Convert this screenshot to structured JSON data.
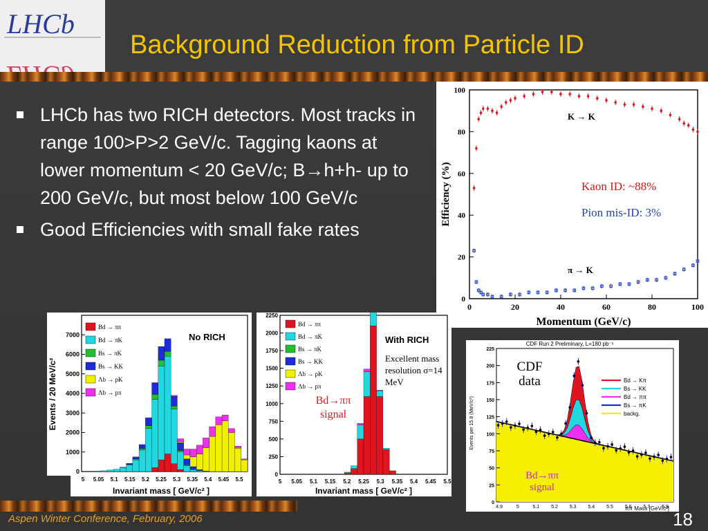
{
  "logo": {
    "text": "LHCb",
    "mirror_text": "LHCb"
  },
  "title": "Background Reduction from Particle ID",
  "bullets": [
    {
      "text": "LHCb has two RICH detectors. Most tracks in range 100>P>2 GeV/c. Tagging kaons at lower momentum < 20 GeV/c; B→h+h- up to 200 GeV/c, but most below 100 GeV/c"
    },
    {
      "text": "Good Efficiencies with small fake rates"
    }
  ],
  "footer": "Aspen Winter Conference, February, 2006",
  "page_number": "18",
  "colors": {
    "title": "#f5c400",
    "footer": "#e6a020",
    "kaon": "#e0141e",
    "pion": "#1e3cc8"
  },
  "chart_data": [
    {
      "type": "scatter",
      "xlabel": "Momentum  (GeV/c)",
      "ylabel": "Efficiency  (%)",
      "xlim": [
        0,
        100
      ],
      "ylim": [
        0,
        100
      ],
      "x_ticks": [
        "0",
        "20",
        "40",
        "60",
        "80",
        "100"
      ],
      "y_ticks": [
        "0",
        "20",
        "40",
        "60",
        "80",
        "100"
      ],
      "annotations": [
        "K → K",
        "π → K",
        "Kaon ID: ~88%",
        "Pion mis-ID: 3%"
      ],
      "series": [
        {
          "name": "K → K",
          "x": [
            2,
            3,
            4,
            5,
            6,
            8,
            10,
            12,
            14,
            16,
            18,
            20,
            24,
            28,
            32,
            36,
            40,
            44,
            48,
            52,
            56,
            60,
            64,
            68,
            72,
            76,
            80,
            84,
            88,
            92,
            94,
            96,
            98,
            100
          ],
          "values": [
            53,
            72,
            86,
            89,
            91,
            91,
            90,
            89,
            92,
            94,
            95,
            96,
            97,
            98,
            99,
            99,
            98,
            98,
            97,
            97,
            96,
            95,
            94,
            93,
            93,
            92,
            91,
            90,
            88,
            86,
            84,
            83,
            81,
            80
          ]
        },
        {
          "name": "π → K",
          "x": [
            2,
            3,
            4,
            5,
            6,
            8,
            10,
            14,
            18,
            22,
            26,
            30,
            34,
            38,
            42,
            46,
            50,
            54,
            58,
            62,
            66,
            70,
            74,
            78,
            82,
            86,
            90,
            94,
            98,
            100
          ],
          "values": [
            23,
            8,
            4,
            3,
            2,
            2,
            1,
            1,
            2,
            2,
            3,
            3,
            3,
            4,
            4,
            4,
            5,
            5,
            6,
            6,
            7,
            7,
            8,
            9,
            9,
            10,
            12,
            14,
            16,
            18
          ]
        }
      ]
    },
    {
      "type": "bar",
      "title": "No RICH",
      "xlabel": "Invariant mass  [ GeV/c² ]",
      "ylabel": "Events / 20 MeV/c²",
      "ylim": [
        0,
        8000
      ],
      "x_ticks": [
        "5",
        "5.05",
        "5.1",
        "5.15",
        "5.2",
        "5.25",
        "5.3",
        "5.35",
        "5.4",
        "5.45",
        "5.5"
      ],
      "y_ticks": [
        "0",
        "1000",
        "2000",
        "3000",
        "4000",
        "5000",
        "6000",
        "7000"
      ],
      "legend": [
        "Bd → ππ",
        "Bd → πK",
        "Bs → πK",
        "Bs → KK",
        "Λb → pK",
        "Λb → pπ"
      ],
      "categories": [
        5.0,
        5.02,
        5.04,
        5.06,
        5.08,
        5.1,
        5.12,
        5.14,
        5.16,
        5.18,
        5.2,
        5.22,
        5.24,
        5.26,
        5.28,
        5.3,
        5.32,
        5.34,
        5.36,
        5.38,
        5.4,
        5.42,
        5.44,
        5.46,
        5.48,
        5.5
      ],
      "series": [
        {
          "name": "Bd → ππ",
          "values": [
            0,
            0,
            0,
            0,
            0,
            0,
            0,
            0,
            0,
            0,
            0,
            200,
            600,
            900,
            400,
            100,
            0,
            0,
            0,
            0,
            0,
            0,
            0,
            0,
            0,
            0
          ]
        },
        {
          "name": "Bd → πK",
          "values": [
            0,
            0,
            20,
            40,
            80,
            120,
            200,
            350,
            600,
            1100,
            2200,
            3500,
            4800,
            5000,
            2800,
            900,
            300,
            100,
            50,
            0,
            0,
            0,
            0,
            0,
            0,
            0
          ]
        },
        {
          "name": "Bs → πK",
          "values": [
            0,
            0,
            0,
            0,
            0,
            0,
            0,
            20,
            50,
            80,
            150,
            250,
            300,
            250,
            150,
            80,
            50,
            0,
            0,
            0,
            0,
            0,
            0,
            0,
            0,
            0
          ]
        },
        {
          "name": "Bs → KK",
          "values": [
            0,
            0,
            0,
            0,
            0,
            0,
            20,
            50,
            100,
            200,
            400,
            600,
            700,
            650,
            500,
            400,
            300,
            150,
            50,
            20,
            0,
            0,
            0,
            0,
            0,
            0
          ]
        },
        {
          "name": "Λb → pK",
          "values": [
            0,
            0,
            0,
            0,
            0,
            0,
            0,
            0,
            0,
            0,
            0,
            0,
            0,
            0,
            0,
            50,
            200,
            500,
            800,
            1200,
            1800,
            2400,
            2600,
            2000,
            1200,
            600
          ]
        },
        {
          "name": "Λb → pπ",
          "values": [
            0,
            0,
            0,
            0,
            0,
            0,
            0,
            0,
            0,
            0,
            0,
            0,
            0,
            0,
            50,
            150,
            300,
            400,
            450,
            500,
            500,
            400,
            300,
            200,
            100,
            50
          ]
        }
      ]
    },
    {
      "type": "bar",
      "title": "With RICH",
      "xlabel": "Invariant mass  [ GeV/c² ]",
      "ylim": [
        0,
        2250
      ],
      "x_ticks": [
        "5",
        "5.05",
        "5.1",
        "5.15",
        "5.2",
        "5.25",
        "5.3",
        "5.35",
        "5.4",
        "5.45",
        "5.5"
      ],
      "y_ticks": [
        "0",
        "250",
        "500",
        "750",
        "1000",
        "1250",
        "1500",
        "1750",
        "2000",
        "2250"
      ],
      "legend": [
        "Bd → ππ",
        "Bd → πK",
        "Bs → πK",
        "Bs → KK",
        "Λb → pK",
        "Λb → pπ"
      ],
      "annotations": [
        "Excellent mass resolution σ=14 MeV",
        "Bd→ππ signal"
      ],
      "categories": [
        5.2,
        5.22,
        5.24,
        5.26,
        5.28,
        5.3,
        5.32,
        5.34
      ],
      "series": [
        {
          "name": "Bd → ππ",
          "values": [
            20,
            80,
            500,
            1100,
            2100,
            1100,
            350,
            50
          ]
        },
        {
          "name": "Bd → πK",
          "values": [
            10,
            40,
            200,
            350,
            250,
            80,
            20,
            0
          ]
        },
        {
          "name": "Λb → pπ",
          "values": [
            0,
            0,
            20,
            40,
            30,
            10,
            0,
            0
          ]
        }
      ]
    },
    {
      "type": "bar",
      "title": "CDF Run 2 Preliminary, L=180 pb⁻¹",
      "xlabel": "ππ Mass [GeV/c²]",
      "ylabel": "Events per 15.8 (MeV/c²)",
      "ylim": [
        0,
        225
      ],
      "x_ticks": [
        "4.9",
        "5",
        "5.1",
        "5.2",
        "5.3",
        "5.4",
        "5.5",
        "5.6",
        "5.7",
        "5.8"
      ],
      "y_ticks": [
        "0",
        "25",
        "50",
        "75",
        "100",
        "125",
        "150",
        "175",
        "200",
        "225"
      ],
      "legend": [
        "Bd → Kπ",
        "Bs → KK",
        "Bd → ππ",
        "Bs → πK",
        "backg."
      ],
      "annotations": [
        "CDF data",
        "Bd→ππ signal"
      ]
    }
  ]
}
